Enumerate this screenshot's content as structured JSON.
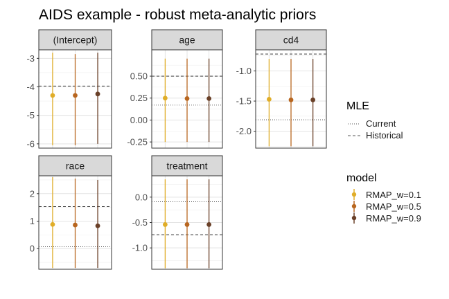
{
  "chart_data": {
    "type": "scatter",
    "title": "AIDS example - robust meta-analytic priors",
    "xlabel": "",
    "ylabel": "",
    "grid": true,
    "legend_placement": "right",
    "models": [
      {
        "name": "RMAP_w=0.1",
        "color": "#e0ad28"
      },
      {
        "name": "RMAP_w=0.5",
        "color": "#b8661f"
      },
      {
        "name": "RMAP_w=0.9",
        "color": "#6a4028"
      }
    ],
    "mle_legend": {
      "title": "MLE",
      "entries": [
        {
          "name": "Current",
          "linetype": "dotted"
        },
        {
          "name": "Historical",
          "linetype": "dashed"
        }
      ]
    },
    "model_legend_title": "model",
    "facets": [
      {
        "label": "(Intercept)",
        "ylim": [
          -6.15,
          -2.7
        ],
        "ticks": [
          -3,
          -4,
          -5,
          -6
        ],
        "tick_labels": [
          "-3",
          "-4",
          "-5",
          "-6"
        ],
        "mle_current": null,
        "mle_historical": -3.97,
        "estimates": [
          {
            "model": "RMAP_w=0.1",
            "mean": -4.3,
            "lower": -6.05,
            "upper": -2.8
          },
          {
            "model": "RMAP_w=0.5",
            "mean": -4.3,
            "lower": -6.05,
            "upper": -2.85
          },
          {
            "model": "RMAP_w=0.9",
            "mean": -4.25,
            "lower": -6.0,
            "upper": -2.8
          }
        ]
      },
      {
        "label": "age",
        "ylim": [
          -0.32,
          0.8
        ],
        "ticks": [
          0.5,
          0.25,
          0.0,
          -0.25
        ],
        "tick_labels": [
          "0.50",
          "0.25",
          "0.00",
          "-0.25"
        ],
        "mle_current": 0.17,
        "mle_historical": 0.5,
        "estimates": [
          {
            "model": "RMAP_w=0.1",
            "mean": 0.25,
            "lower": -0.25,
            "upper": 0.7
          },
          {
            "model": "RMAP_w=0.5",
            "mean": 0.245,
            "lower": -0.25,
            "upper": 0.7
          },
          {
            "model": "RMAP_w=0.9",
            "mean": 0.245,
            "lower": -0.25,
            "upper": 0.7
          }
        ]
      },
      {
        "label": "cd4",
        "ylim": [
          -2.28,
          -0.65
        ],
        "ticks": [
          -1.0,
          -1.5,
          -2.0
        ],
        "tick_labels": [
          "-1.0",
          "-1.5",
          "-2.0"
        ],
        "mle_current": -1.81,
        "mle_historical": -0.72,
        "estimates": [
          {
            "model": "RMAP_w=0.1",
            "mean": -1.47,
            "lower": -2.25,
            "upper": -0.8
          },
          {
            "model": "RMAP_w=0.5",
            "mean": -1.48,
            "lower": -2.25,
            "upper": -0.8
          },
          {
            "model": "RMAP_w=0.9",
            "mean": -1.48,
            "lower": -2.25,
            "upper": -0.8
          }
        ]
      },
      {
        "label": "race",
        "ylim": [
          -0.75,
          2.65
        ],
        "ticks": [
          2,
          1,
          0
        ],
        "tick_labels": [
          "2",
          "1",
          "0"
        ],
        "mle_current": 0.07,
        "mle_historical": 1.53,
        "estimates": [
          {
            "model": "RMAP_w=0.1",
            "mean": 0.88,
            "lower": -0.7,
            "upper": 2.6
          },
          {
            "model": "RMAP_w=0.5",
            "mean": 0.86,
            "lower": -0.7,
            "upper": 2.55
          },
          {
            "model": "RMAP_w=0.9",
            "mean": 0.83,
            "lower": -0.7,
            "upper": 2.5
          }
        ]
      },
      {
        "label": "treatment",
        "ylim": [
          -1.42,
          0.42
        ],
        "ticks": [
          0.0,
          -0.5,
          -1.0
        ],
        "tick_labels": [
          "0.0",
          "-0.5",
          "-1.0"
        ],
        "mle_current": -0.09,
        "mle_historical": -0.74,
        "estimates": [
          {
            "model": "RMAP_w=0.1",
            "mean": -0.54,
            "lower": -1.4,
            "upper": 0.35
          },
          {
            "model": "RMAP_w=0.5",
            "mean": -0.54,
            "lower": -1.4,
            "upper": 0.35
          },
          {
            "model": "RMAP_w=0.9",
            "mean": -0.54,
            "lower": -1.4,
            "upper": 0.35
          }
        ]
      }
    ]
  }
}
